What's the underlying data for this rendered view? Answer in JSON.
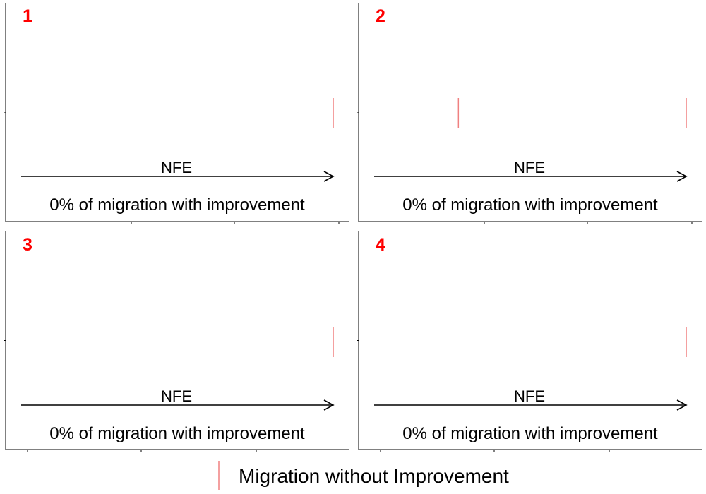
{
  "chart_data": [
    {
      "type": "event-timeline",
      "panel_label": "1",
      "axis_label": "NFE",
      "caption": "0% of migration with improvement",
      "series": [
        {
          "name": "Migration without Improvement",
          "color": "#f08080",
          "x": [
            1.0
          ]
        }
      ]
    },
    {
      "type": "event-timeline",
      "panel_label": "2",
      "axis_label": "NFE",
      "caption": "0% of migration with improvement",
      "series": [
        {
          "name": "Migration without Improvement",
          "color": "#f08080",
          "x": [
            0.27,
            1.0
          ]
        }
      ]
    },
    {
      "type": "event-timeline",
      "panel_label": "3",
      "axis_label": "NFE",
      "caption": "0% of migration with improvement",
      "series": [
        {
          "name": "Migration without Improvement",
          "color": "#f08080",
          "x": [
            1.0
          ]
        }
      ]
    },
    {
      "type": "event-timeline",
      "panel_label": "4",
      "axis_label": "NFE",
      "caption": "0% of migration with improvement",
      "series": [
        {
          "name": "Migration without Improvement",
          "color": "#f08080",
          "x": [
            1.0
          ]
        }
      ]
    }
  ],
  "legend": {
    "label": "Migration without Improvement",
    "color": "#f08080"
  },
  "colors": {
    "panel_label": "#ff0000",
    "axis": "#000000"
  }
}
